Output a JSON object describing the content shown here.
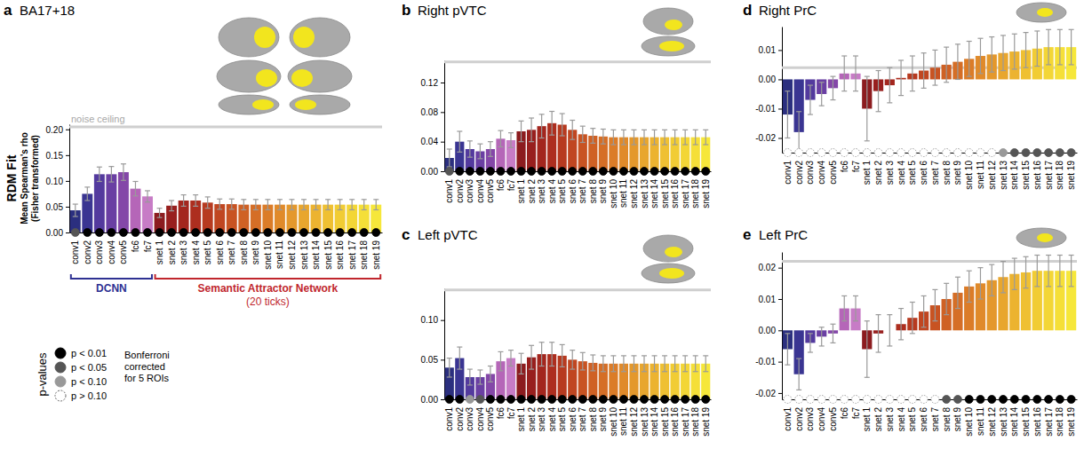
{
  "chart_data": [
    {
      "type": "bar",
      "panel": "a",
      "title": "BA17+18",
      "y_label": "RDM Fit",
      "y_sublabel": [
        "Mean Spearman's rho",
        "(Fisher transformed)"
      ],
      "categories": [
        "conv1",
        "conv2",
        "conv3",
        "conv4",
        "conv5",
        "fc6",
        "fc7",
        "snet 1",
        "snet 2",
        "snet 3",
        "snet 4",
        "snet 5",
        "snet 6",
        "snet 7",
        "snet 8",
        "snet 9",
        "snet 10",
        "snet 11",
        "snet 12",
        "snet 13",
        "snet 14",
        "snet 15",
        "snet 16",
        "snet 17",
        "snet 18",
        "snet 19"
      ],
      "values": [
        0.043,
        0.075,
        0.113,
        0.113,
        0.117,
        0.085,
        0.07,
        0.038,
        0.052,
        0.062,
        0.062,
        0.058,
        0.055,
        0.055,
        0.054,
        0.054,
        0.054,
        0.054,
        0.054,
        0.054,
        0.054,
        0.054,
        0.054,
        0.054,
        0.054,
        0.054
      ],
      "errors": [
        0.012,
        0.013,
        0.014,
        0.015,
        0.016,
        0.014,
        0.011,
        0.009,
        0.01,
        0.011,
        0.011,
        0.011,
        0.01,
        0.01,
        0.01,
        0.01,
        0.01,
        0.01,
        0.01,
        0.01,
        0.01,
        0.01,
        0.01,
        0.01,
        0.01,
        0.01
      ],
      "significance": [
        "p < 0.05",
        "p < 0.01",
        "p < 0.01",
        "p < 0.01",
        "p < 0.01",
        "p < 0.01",
        "p < 0.01",
        "p < 0.01",
        "p < 0.01",
        "p < 0.01",
        "p < 0.01",
        "p < 0.01",
        "p < 0.01",
        "p < 0.01",
        "p < 0.01",
        "p < 0.01",
        "p < 0.01",
        "p < 0.01",
        "p < 0.01",
        "p < 0.01",
        "p < 0.01",
        "p < 0.01",
        "p < 0.01",
        "p < 0.01",
        "p < 0.01",
        "p < 0.01"
      ],
      "colors": [
        "#2b2f7f",
        "#3a3592",
        "#533a9e",
        "#6a3fa3",
        "#8447a8",
        "#b566b8",
        "#c77cc6",
        "#8c1c1f",
        "#981f1e",
        "#a3261e",
        "#ad2e1f",
        "#b73a20",
        "#c04621",
        "#c85322",
        "#cf6124",
        "#d56e26",
        "#db7c28",
        "#e08a2a",
        "#e4982c",
        "#e8a62e",
        "#ecb330",
        "#efc032",
        "#f1cc34",
        "#f3d636",
        "#f5df38",
        "#f6e73a"
      ],
      "noise_ceiling": 0.205,
      "noise_ceiling_label": "noise ceiling",
      "ylim": [
        0,
        0.21
      ],
      "yticks": [
        {
          "value": 0,
          "label": "0.00"
        },
        {
          "value": 0.05,
          "label": "0.05"
        },
        {
          "value": 0.1,
          "label": "0.10"
        },
        {
          "value": 0.15,
          "label": "0.15"
        },
        {
          "value": 0.2,
          "label": "0.20"
        }
      ],
      "groups": [
        {
          "label": "DCNN",
          "color": "#2e3192",
          "categories": [
            "conv1",
            "fc7"
          ]
        },
        {
          "label": "Semantic Attractor Network",
          "note": "(20 ticks)",
          "color": "#c0262d",
          "categories": [
            "snet 1",
            "snet 19"
          ]
        }
      ]
    },
    {
      "type": "bar",
      "panel": "b",
      "title": "Right pVTC",
      "categories": [
        "conv1",
        "conv2",
        "conv3",
        "conv4",
        "conv5",
        "fc6",
        "fc7",
        "snet 1",
        "snet 2",
        "snet 3",
        "snet 4",
        "snet 5",
        "snet 6",
        "snet 7",
        "snet 8",
        "snet 9",
        "snet 10",
        "snet 11",
        "snet 12",
        "snet 13",
        "snet 14",
        "snet 15",
        "snet 16",
        "snet 17",
        "snet 18",
        "snet 19"
      ],
      "values": [
        0.018,
        0.04,
        0.03,
        0.027,
        0.03,
        0.044,
        0.042,
        0.054,
        0.056,
        0.061,
        0.065,
        0.063,
        0.056,
        0.05,
        0.048,
        0.047,
        0.046,
        0.046,
        0.046,
        0.046,
        0.046,
        0.046,
        0.046,
        0.046,
        0.046,
        0.046
      ],
      "errors": [
        0.012,
        0.014,
        0.011,
        0.01,
        0.01,
        0.011,
        0.01,
        0.014,
        0.016,
        0.016,
        0.016,
        0.015,
        0.013,
        0.011,
        0.01,
        0.01,
        0.01,
        0.01,
        0.01,
        0.01,
        0.01,
        0.01,
        0.01,
        0.01,
        0.01,
        0.01
      ],
      "significance": [
        "p < 0.05",
        "p < 0.01",
        "p < 0.01",
        "p < 0.01",
        "p < 0.01",
        "p < 0.01",
        "p < 0.01",
        "p < 0.01",
        "p < 0.01",
        "p < 0.01",
        "p < 0.01",
        "p < 0.01",
        "p < 0.01",
        "p < 0.01",
        "p < 0.01",
        "p < 0.01",
        "p < 0.01",
        "p < 0.01",
        "p < 0.01",
        "p < 0.01",
        "p < 0.01",
        "p < 0.01",
        "p < 0.01",
        "p < 0.01",
        "p < 0.01",
        "p < 0.01"
      ],
      "colors": [
        "#2b2f7f",
        "#3a3592",
        "#533a9e",
        "#6a3fa3",
        "#8447a8",
        "#b566b8",
        "#c77cc6",
        "#8c1c1f",
        "#981f1e",
        "#a3261e",
        "#ad2e1f",
        "#b73a20",
        "#c04621",
        "#c85322",
        "#cf6124",
        "#d56e26",
        "#db7c28",
        "#e08a2a",
        "#e4982c",
        "#e8a62e",
        "#ecb330",
        "#efc032",
        "#f1cc34",
        "#f3d636",
        "#f5df38",
        "#f6e73a"
      ],
      "noise_ceiling": 0.148,
      "ylim": [
        0,
        0.15
      ],
      "yticks": [
        {
          "value": 0,
          "label": "0.00"
        },
        {
          "value": 0.04,
          "label": "0.04"
        },
        {
          "value": 0.08,
          "label": "0.08"
        },
        {
          "value": 0.12,
          "label": "0.12"
        }
      ]
    },
    {
      "type": "bar",
      "panel": "c",
      "title": "Left pVTC",
      "categories": [
        "conv1",
        "conv2",
        "conv3",
        "conv4",
        "conv5",
        "fc6",
        "fc7",
        "snet 1",
        "snet 2",
        "snet 3",
        "snet 4",
        "snet 5",
        "snet 6",
        "snet 7",
        "snet 8",
        "snet 9",
        "snet 10",
        "snet 11",
        "snet 12",
        "snet 13",
        "snet 14",
        "snet 15",
        "snet 16",
        "snet 17",
        "snet 18",
        "snet 19"
      ],
      "values": [
        0.04,
        0.052,
        0.028,
        0.028,
        0.032,
        0.048,
        0.052,
        0.045,
        0.053,
        0.057,
        0.057,
        0.055,
        0.05,
        0.048,
        0.046,
        0.045,
        0.045,
        0.045,
        0.045,
        0.045,
        0.045,
        0.045,
        0.045,
        0.045,
        0.045,
        0.045
      ],
      "errors": [
        0.012,
        0.014,
        0.01,
        0.009,
        0.01,
        0.012,
        0.01,
        0.013,
        0.015,
        0.015,
        0.015,
        0.014,
        0.012,
        0.011,
        0.01,
        0.01,
        0.01,
        0.01,
        0.01,
        0.01,
        0.01,
        0.01,
        0.01,
        0.01,
        0.01,
        0.01
      ],
      "significance": [
        "p < 0.01",
        "p < 0.01",
        "p < 0.10",
        "p < 0.05",
        "p < 0.01",
        "p < 0.01",
        "p < 0.01",
        "p < 0.01",
        "p < 0.01",
        "p < 0.01",
        "p < 0.01",
        "p < 0.01",
        "p < 0.01",
        "p < 0.01",
        "p < 0.01",
        "p < 0.01",
        "p < 0.01",
        "p < 0.01",
        "p < 0.01",
        "p < 0.01",
        "p < 0.01",
        "p < 0.01",
        "p < 0.01",
        "p < 0.01",
        "p < 0.01",
        "p < 0.01"
      ],
      "colors": [
        "#2b2f7f",
        "#3a3592",
        "#533a9e",
        "#6a3fa3",
        "#8447a8",
        "#b566b8",
        "#c77cc6",
        "#8c1c1f",
        "#981f1e",
        "#a3261e",
        "#ad2e1f",
        "#b73a20",
        "#c04621",
        "#c85322",
        "#cf6124",
        "#d56e26",
        "#db7c28",
        "#e08a2a",
        "#e4982c",
        "#e8a62e",
        "#ecb330",
        "#efc032",
        "#f1cc34",
        "#f3d636",
        "#f5df38",
        "#f6e73a"
      ],
      "noise_ceiling": 0.138,
      "ylim": [
        0,
        0.14
      ],
      "yticks": [
        {
          "value": 0,
          "label": "0.00"
        },
        {
          "value": 0.05,
          "label": "0.05"
        },
        {
          "value": 0.1,
          "label": "0.10"
        }
      ]
    },
    {
      "type": "bar",
      "panel": "d",
      "title": "Right PrC",
      "categories": [
        "conv1",
        "conv2",
        "conv3",
        "conv4",
        "conv5",
        "fc6",
        "fc7",
        "snet 1",
        "snet 2",
        "snet 3",
        "snet 4",
        "snet 5",
        "snet 6",
        "snet 7",
        "snet 8",
        "snet 9",
        "snet 10",
        "snet 11",
        "snet 12",
        "snet 13",
        "snet 14",
        "snet 15",
        "snet 16",
        "snet 17",
        "snet 18",
        "snet 19"
      ],
      "values": [
        -0.012,
        -0.018,
        -0.007,
        -0.005,
        -0.003,
        0.002,
        0.002,
        -0.01,
        -0.004,
        -0.002,
        0.0005,
        0.002,
        0.003,
        0.004,
        0.005,
        0.006,
        0.007,
        0.008,
        0.0085,
        0.009,
        0.0095,
        0.01,
        0.0105,
        0.011,
        0.011,
        0.011
      ],
      "errors": [
        0.008,
        0.007,
        0.005,
        0.004,
        0.004,
        0.006,
        0.006,
        0.011,
        0.007,
        0.006,
        0.006,
        0.006,
        0.006,
        0.006,
        0.006,
        0.006,
        0.006,
        0.006,
        0.006,
        0.006,
        0.006,
        0.006,
        0.006,
        0.006,
        0.006,
        0.006
      ],
      "significance": [
        "p > 0.10",
        "p > 0.10",
        "p > 0.10",
        "p > 0.10",
        "p > 0.10",
        "p > 0.10",
        "p > 0.10",
        "p > 0.10",
        "p > 0.10",
        "p > 0.10",
        "p > 0.10",
        "p > 0.10",
        "p > 0.10",
        "p > 0.10",
        "p > 0.10",
        "p > 0.10",
        "p > 0.10",
        "p > 0.10",
        "p > 0.10",
        "p < 0.10",
        "p < 0.05",
        "p < 0.05",
        "p < 0.05",
        "p < 0.05",
        "p < 0.05",
        "p < 0.05"
      ],
      "colors": [
        "#2b2f7f",
        "#3a3592",
        "#533a9e",
        "#6a3fa3",
        "#8447a8",
        "#b566b8",
        "#c77cc6",
        "#8c1c1f",
        "#981f1e",
        "#a3261e",
        "#ad2e1f",
        "#b73a20",
        "#c04621",
        "#c85322",
        "#cf6124",
        "#d56e26",
        "#db7c28",
        "#e08a2a",
        "#e4982c",
        "#e8a62e",
        "#ecb330",
        "#efc032",
        "#f1cc34",
        "#f3d636",
        "#f5df38",
        "#f6e73a"
      ],
      "noise_ceiling": 0.004,
      "ylim": [
        -0.025,
        0.018
      ],
      "yticks": [
        {
          "value": -0.02,
          "label": "-0.02"
        },
        {
          "value": -0.01,
          "label": "-0.01"
        },
        {
          "value": 0,
          "label": "0.00"
        },
        {
          "value": 0.01,
          "label": "0.01"
        }
      ]
    },
    {
      "type": "bar",
      "panel": "e",
      "title": "Left PrC",
      "categories": [
        "conv1",
        "conv2",
        "conv3",
        "conv4",
        "conv5",
        "fc6",
        "fc7",
        "snet 1",
        "snet 2",
        "snet 3",
        "snet 4",
        "snet 5",
        "snet 6",
        "snet 7",
        "snet 8",
        "snet 9",
        "snet 10",
        "snet 11",
        "snet 12",
        "snet 13",
        "snet 14",
        "snet 15",
        "snet 16",
        "snet 17",
        "snet 18",
        "snet 19"
      ],
      "values": [
        -0.006,
        -0.014,
        -0.004,
        -0.002,
        -0.001,
        0.007,
        0.007,
        -0.006,
        -0.001,
        0,
        0.002,
        0.004,
        0.006,
        0.008,
        0.01,
        0.012,
        0.014,
        0.015,
        0.016,
        0.017,
        0.018,
        0.0185,
        0.019,
        0.019,
        0.019,
        0.019
      ],
      "errors": [
        0.005,
        0.005,
        0.003,
        0.003,
        0.003,
        0.004,
        0.004,
        0.009,
        0.006,
        0.005,
        0.005,
        0.005,
        0.005,
        0.005,
        0.005,
        0.005,
        0.005,
        0.005,
        0.005,
        0.005,
        0.005,
        0.005,
        0.005,
        0.005,
        0.005,
        0.005
      ],
      "significance": [
        "p > 0.10",
        "p > 0.10",
        "p > 0.10",
        "p > 0.10",
        "p > 0.10",
        "p > 0.10",
        "p > 0.10",
        "p > 0.10",
        "p > 0.10",
        "p > 0.10",
        "p > 0.10",
        "p > 0.10",
        "p > 0.10",
        "p > 0.10",
        "p < 0.05",
        "p < 0.05",
        "p < 0.01",
        "p < 0.01",
        "p < 0.01",
        "p < 0.01",
        "p < 0.01",
        "p < 0.01",
        "p < 0.01",
        "p < 0.01",
        "p < 0.01",
        "p < 0.01"
      ],
      "colors": [
        "#2b2f7f",
        "#3a3592",
        "#533a9e",
        "#6a3fa3",
        "#8447a8",
        "#b566b8",
        "#c77cc6",
        "#8c1c1f",
        "#981f1e",
        "#a3261e",
        "#ad2e1f",
        "#b73a20",
        "#c04621",
        "#c85322",
        "#cf6124",
        "#d56e26",
        "#db7c28",
        "#e08a2a",
        "#e4982c",
        "#e8a62e",
        "#ecb330",
        "#efc032",
        "#f1cc34",
        "#f3d636",
        "#f5df38",
        "#f6e73a"
      ],
      "noise_ceiling": 0.022,
      "ylim": [
        -0.022,
        0.025
      ],
      "yticks": [
        {
          "value": -0.02,
          "label": "-0.02"
        },
        {
          "value": -0.01,
          "label": "-0.01"
        },
        {
          "value": 0,
          "label": "0.00"
        },
        {
          "value": 0.01,
          "label": "0.01"
        },
        {
          "value": 0.02,
          "label": "0.02"
        }
      ]
    }
  ],
  "significance_legend": {
    "title": "p-values",
    "labels": [
      "p < 0.01",
      "p < 0.05",
      "p < 0.10",
      "p > 0.10"
    ],
    "colors": [
      "#000000",
      "#555555",
      "#999999",
      "#ffffff"
    ],
    "note": "Bonferroni corrected for 5 ROIs"
  }
}
